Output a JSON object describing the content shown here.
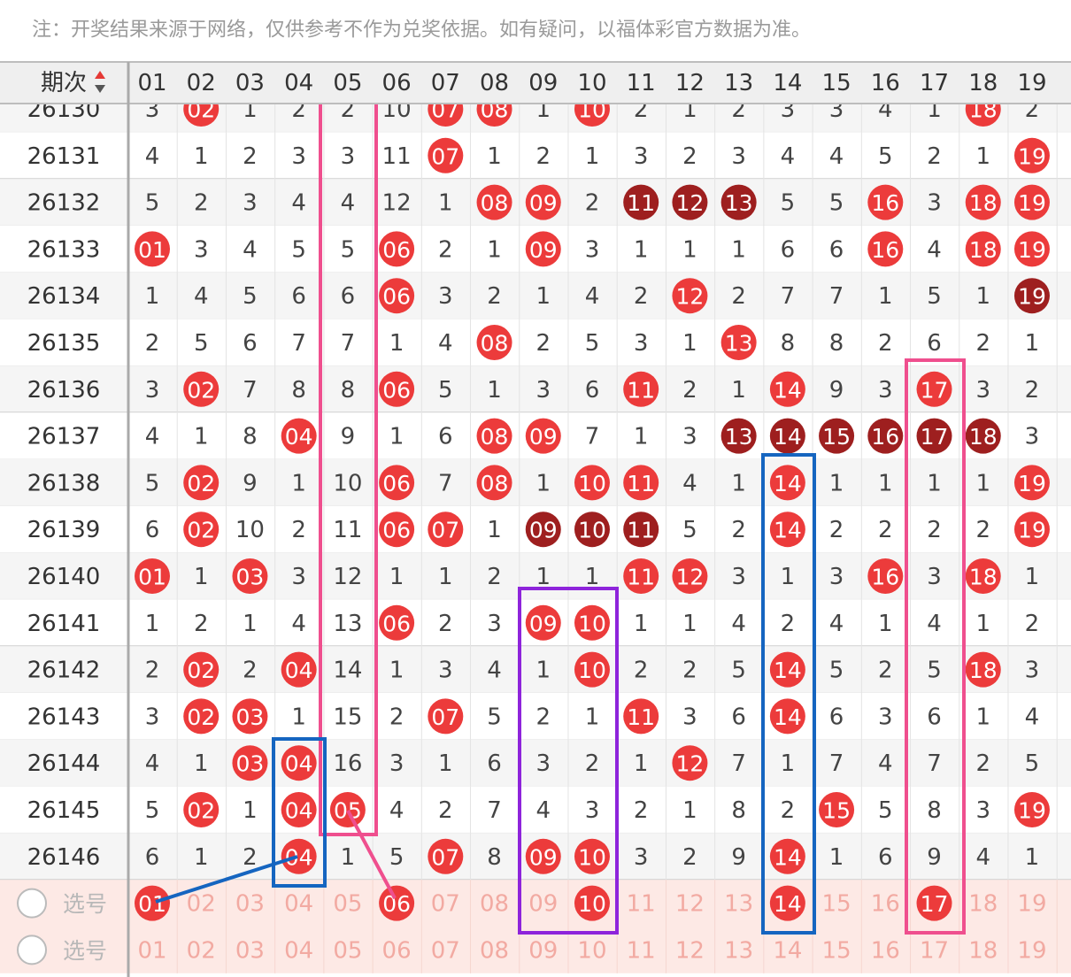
{
  "note": "注：开奖结果来源于网络，仅供参考不作为兑奖依据。如有疑问，以福体彩官方数据为准。",
  "header": {
    "issue_label": "期次",
    "columns": [
      "01",
      "02",
      "03",
      "04",
      "05",
      "06",
      "07",
      "08",
      "09",
      "10",
      "11",
      "12",
      "13",
      "14",
      "15",
      "16",
      "17",
      "18",
      "19"
    ]
  },
  "rows": [
    {
      "issue": "26130",
      "cells": [
        "3",
        {
          "ball": "02"
        },
        "1",
        "2",
        "2",
        "10",
        {
          "ball": "07"
        },
        {
          "ball": "08"
        },
        "1",
        {
          "ball": "10"
        },
        "2",
        "1",
        "2",
        "3",
        "3",
        "4",
        "1",
        {
          "ball": "18"
        },
        "2"
      ]
    },
    {
      "issue": "26131",
      "cells": [
        "4",
        "1",
        "2",
        "3",
        "3",
        "11",
        {
          "ball": "07"
        },
        "1",
        "2",
        "1",
        "3",
        "2",
        "3",
        "4",
        "4",
        "5",
        "2",
        "1",
        {
          "ball": "19"
        }
      ]
    },
    {
      "issue": "26132",
      "cells": [
        "5",
        "2",
        "3",
        "4",
        "4",
        "12",
        "1",
        {
          "ball": "08"
        },
        {
          "ball": "09"
        },
        "2",
        {
          "ball": "11",
          "dark": true
        },
        {
          "ball": "12",
          "dark": true
        },
        {
          "ball": "13",
          "dark": true
        },
        "5",
        "5",
        {
          "ball": "16"
        },
        "3",
        {
          "ball": "18"
        },
        {
          "ball": "19"
        }
      ]
    },
    {
      "issue": "26133",
      "cells": [
        {
          "ball": "01"
        },
        "3",
        "4",
        "5",
        "5",
        {
          "ball": "06"
        },
        "2",
        "1",
        {
          "ball": "09"
        },
        "3",
        "1",
        "1",
        "1",
        "6",
        "6",
        {
          "ball": "16"
        },
        "4",
        {
          "ball": "18"
        },
        {
          "ball": "19"
        }
      ]
    },
    {
      "issue": "26134",
      "cells": [
        "1",
        "4",
        "5",
        "6",
        "6",
        {
          "ball": "06"
        },
        "3",
        "2",
        "1",
        "4",
        "2",
        {
          "ball": "12"
        },
        "2",
        "7",
        "7",
        "1",
        "5",
        "1",
        {
          "ball": "19",
          "dark": true
        }
      ]
    },
    {
      "issue": "26135",
      "cells": [
        "2",
        "5",
        "6",
        "7",
        "7",
        "1",
        "4",
        {
          "ball": "08"
        },
        "2",
        "5",
        "3",
        "1",
        {
          "ball": "13"
        },
        "8",
        "8",
        "2",
        "6",
        "2",
        "1"
      ]
    },
    {
      "issue": "26136",
      "cells": [
        "3",
        {
          "ball": "02"
        },
        "7",
        "8",
        "8",
        {
          "ball": "06"
        },
        "5",
        "1",
        "3",
        "6",
        {
          "ball": "11"
        },
        "2",
        "1",
        {
          "ball": "14"
        },
        "9",
        "3",
        {
          "ball": "17"
        },
        "3",
        "2"
      ]
    },
    {
      "issue": "26137",
      "cells": [
        "4",
        "1",
        "8",
        {
          "ball": "04"
        },
        "9",
        "1",
        "6",
        {
          "ball": "08"
        },
        {
          "ball": "09"
        },
        "7",
        "1",
        "3",
        {
          "ball": "13",
          "dark": true
        },
        {
          "ball": "14",
          "dark": true
        },
        {
          "ball": "15",
          "dark": true
        },
        {
          "ball": "16",
          "dark": true
        },
        {
          "ball": "17",
          "dark": true
        },
        {
          "ball": "18",
          "dark": true
        },
        "3"
      ]
    },
    {
      "issue": "26138",
      "cells": [
        "5",
        {
          "ball": "02"
        },
        "9",
        "1",
        "10",
        {
          "ball": "06"
        },
        "7",
        {
          "ball": "08"
        },
        "1",
        {
          "ball": "10"
        },
        {
          "ball": "11"
        },
        "4",
        "1",
        {
          "ball": "14"
        },
        "1",
        "1",
        "1",
        "1",
        {
          "ball": "19"
        }
      ]
    },
    {
      "issue": "26139",
      "cells": [
        "6",
        {
          "ball": "02"
        },
        "10",
        "2",
        "11",
        {
          "ball": "06"
        },
        {
          "ball": "07"
        },
        "1",
        {
          "ball": "09",
          "dark": true
        },
        {
          "ball": "10",
          "dark": true
        },
        {
          "ball": "11",
          "dark": true
        },
        "5",
        "2",
        {
          "ball": "14"
        },
        "2",
        "2",
        "2",
        "2",
        {
          "ball": "19"
        }
      ]
    },
    {
      "issue": "26140",
      "cells": [
        {
          "ball": "01"
        },
        "1",
        {
          "ball": "03"
        },
        "3",
        "12",
        "1",
        "1",
        "2",
        "1",
        "1",
        {
          "ball": "11"
        },
        {
          "ball": "12"
        },
        "3",
        "1",
        "3",
        {
          "ball": "16"
        },
        "3",
        {
          "ball": "18"
        },
        "1"
      ]
    },
    {
      "issue": "26141",
      "cells": [
        "1",
        "2",
        "1",
        "4",
        "13",
        {
          "ball": "06"
        },
        "2",
        "3",
        {
          "ball": "09"
        },
        {
          "ball": "10"
        },
        "1",
        "1",
        "4",
        "2",
        "4",
        "1",
        "4",
        "1",
        "2"
      ]
    },
    {
      "issue": "26142",
      "cells": [
        "2",
        {
          "ball": "02"
        },
        "2",
        {
          "ball": "04"
        },
        "14",
        "1",
        "3",
        "4",
        "1",
        {
          "ball": "10"
        },
        "2",
        "2",
        "5",
        {
          "ball": "14"
        },
        "5",
        "2",
        "5",
        {
          "ball": "18"
        },
        "3"
      ]
    },
    {
      "issue": "26143",
      "cells": [
        "3",
        {
          "ball": "02"
        },
        {
          "ball": "03"
        },
        "1",
        "15",
        "2",
        {
          "ball": "07"
        },
        "5",
        "2",
        "1",
        {
          "ball": "11"
        },
        "3",
        "6",
        {
          "ball": "14"
        },
        "6",
        "3",
        "6",
        "1",
        "4"
      ]
    },
    {
      "issue": "26144",
      "cells": [
        "4",
        "1",
        {
          "ball": "03"
        },
        {
          "ball": "04"
        },
        "16",
        "3",
        "1",
        "6",
        "3",
        "2",
        "1",
        {
          "ball": "12"
        },
        "7",
        "1",
        "7",
        "4",
        "7",
        "2",
        "5"
      ]
    },
    {
      "issue": "26145",
      "cells": [
        "5",
        {
          "ball": "02"
        },
        "1",
        {
          "ball": "04"
        },
        {
          "ball": "05"
        },
        "4",
        "2",
        "7",
        "4",
        "3",
        "2",
        "1",
        "8",
        "2",
        {
          "ball": "15"
        },
        "5",
        "8",
        "3",
        {
          "ball": "19"
        }
      ]
    },
    {
      "issue": "26146",
      "cells": [
        "6",
        "1",
        "2",
        {
          "ball": "04"
        },
        "1",
        "5",
        {
          "ball": "07"
        },
        "8",
        {
          "ball": "09"
        },
        {
          "ball": "10"
        },
        "3",
        "2",
        "9",
        {
          "ball": "14"
        },
        "1",
        "6",
        "9",
        "4",
        "1"
      ]
    }
  ],
  "select_rows": [
    {
      "label": "选号",
      "cells": [
        {
          "ball": "01"
        },
        "02",
        "03",
        "04",
        "05",
        {
          "ball": "06"
        },
        "07",
        "08",
        "09",
        {
          "ball": "10"
        },
        "11",
        "12",
        "13",
        {
          "ball": "14"
        },
        "15",
        "16",
        {
          "ball": "17"
        },
        "18",
        "19"
      ]
    },
    {
      "label": "选号",
      "cells": [
        "01",
        "02",
        "03",
        "04",
        "05",
        "06",
        "07",
        "08",
        "09",
        "10",
        "11",
        "12",
        "13",
        "14",
        "15",
        "16",
        "17",
        "18",
        "19"
      ]
    }
  ]
}
